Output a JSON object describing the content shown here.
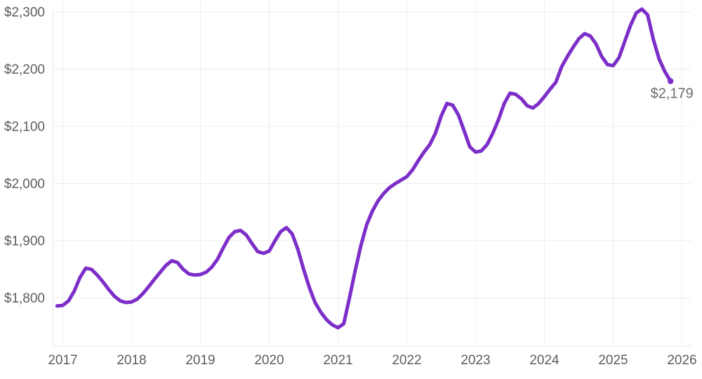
{
  "chart_data": {
    "type": "line",
    "title": "",
    "legend": false,
    "grid": true,
    "background": "#ffffff",
    "colors": {
      "line": "#7d2ec8",
      "marker": "#7d2ec8",
      "grid_vertical": "#f0f0f0",
      "grid_horizontal": "#ececec",
      "frame": "#e7e7e7",
      "tick_text": "#5d5d5d",
      "end_label_text": "#6b6b6b"
    },
    "y_axis": {
      "ticks": [
        {
          "value": 1800,
          "label": "$1,800"
        },
        {
          "value": 1900,
          "label": "$1,900"
        },
        {
          "value": 2000,
          "label": "$2,000"
        },
        {
          "value": 2100,
          "label": "$2,100"
        },
        {
          "value": 2200,
          "label": "$2,200"
        },
        {
          "value": 2300,
          "label": "$2,300"
        }
      ],
      "range": [
        1716,
        2321
      ]
    },
    "x_axis": {
      "ticks": [
        {
          "value": 2017,
          "label": "2017"
        },
        {
          "value": 2018,
          "label": "2018"
        },
        {
          "value": 2019,
          "label": "2019"
        },
        {
          "value": 2020,
          "label": "2020"
        },
        {
          "value": 2021,
          "label": "2021"
        },
        {
          "value": 2022,
          "label": "2022"
        },
        {
          "value": 2023,
          "label": "2023"
        },
        {
          "value": 2024,
          "label": "2024"
        },
        {
          "value": 2025,
          "label": "2025"
        },
        {
          "value": 2026,
          "label": "2026"
        }
      ],
      "range": [
        2016.85,
        2026.17
      ]
    },
    "series": [
      {
        "name": "monthly-payment",
        "frequency": "monthly",
        "start": "2016-12",
        "end": "2025-11",
        "values": [
          1786,
          1787,
          1795,
          1812,
          1836,
          1852,
          1850,
          1840,
          1828,
          1815,
          1803,
          1795,
          1792,
          1793,
          1798,
          1808,
          1820,
          1833,
          1845,
          1857,
          1865,
          1862,
          1850,
          1842,
          1840,
          1841,
          1845,
          1854,
          1868,
          1888,
          1906,
          1916,
          1918,
          1910,
          1895,
          1881,
          1878,
          1882,
          1900,
          1916,
          1923,
          1912,
          1885,
          1850,
          1818,
          1792,
          1775,
          1762,
          1753,
          1748,
          1755,
          1800,
          1848,
          1892,
          1928,
          1952,
          1970,
          1983,
          1993,
          2000,
          2006,
          2012,
          2024,
          2040,
          2055,
          2068,
          2088,
          2118,
          2140,
          2137,
          2120,
          2092,
          2064,
          2055,
          2057,
          2068,
          2088,
          2112,
          2140,
          2158,
          2156,
          2148,
          2136,
          2132,
          2140,
          2152,
          2165,
          2177,
          2204,
          2222,
          2238,
          2253,
          2262,
          2258,
          2244,
          2222,
          2208,
          2206,
          2220,
          2248,
          2276,
          2298,
          2305,
          2295,
          2252,
          2218,
          2196,
          2179
        ]
      }
    ],
    "end_label": "$2,179",
    "end_value": 2179
  }
}
